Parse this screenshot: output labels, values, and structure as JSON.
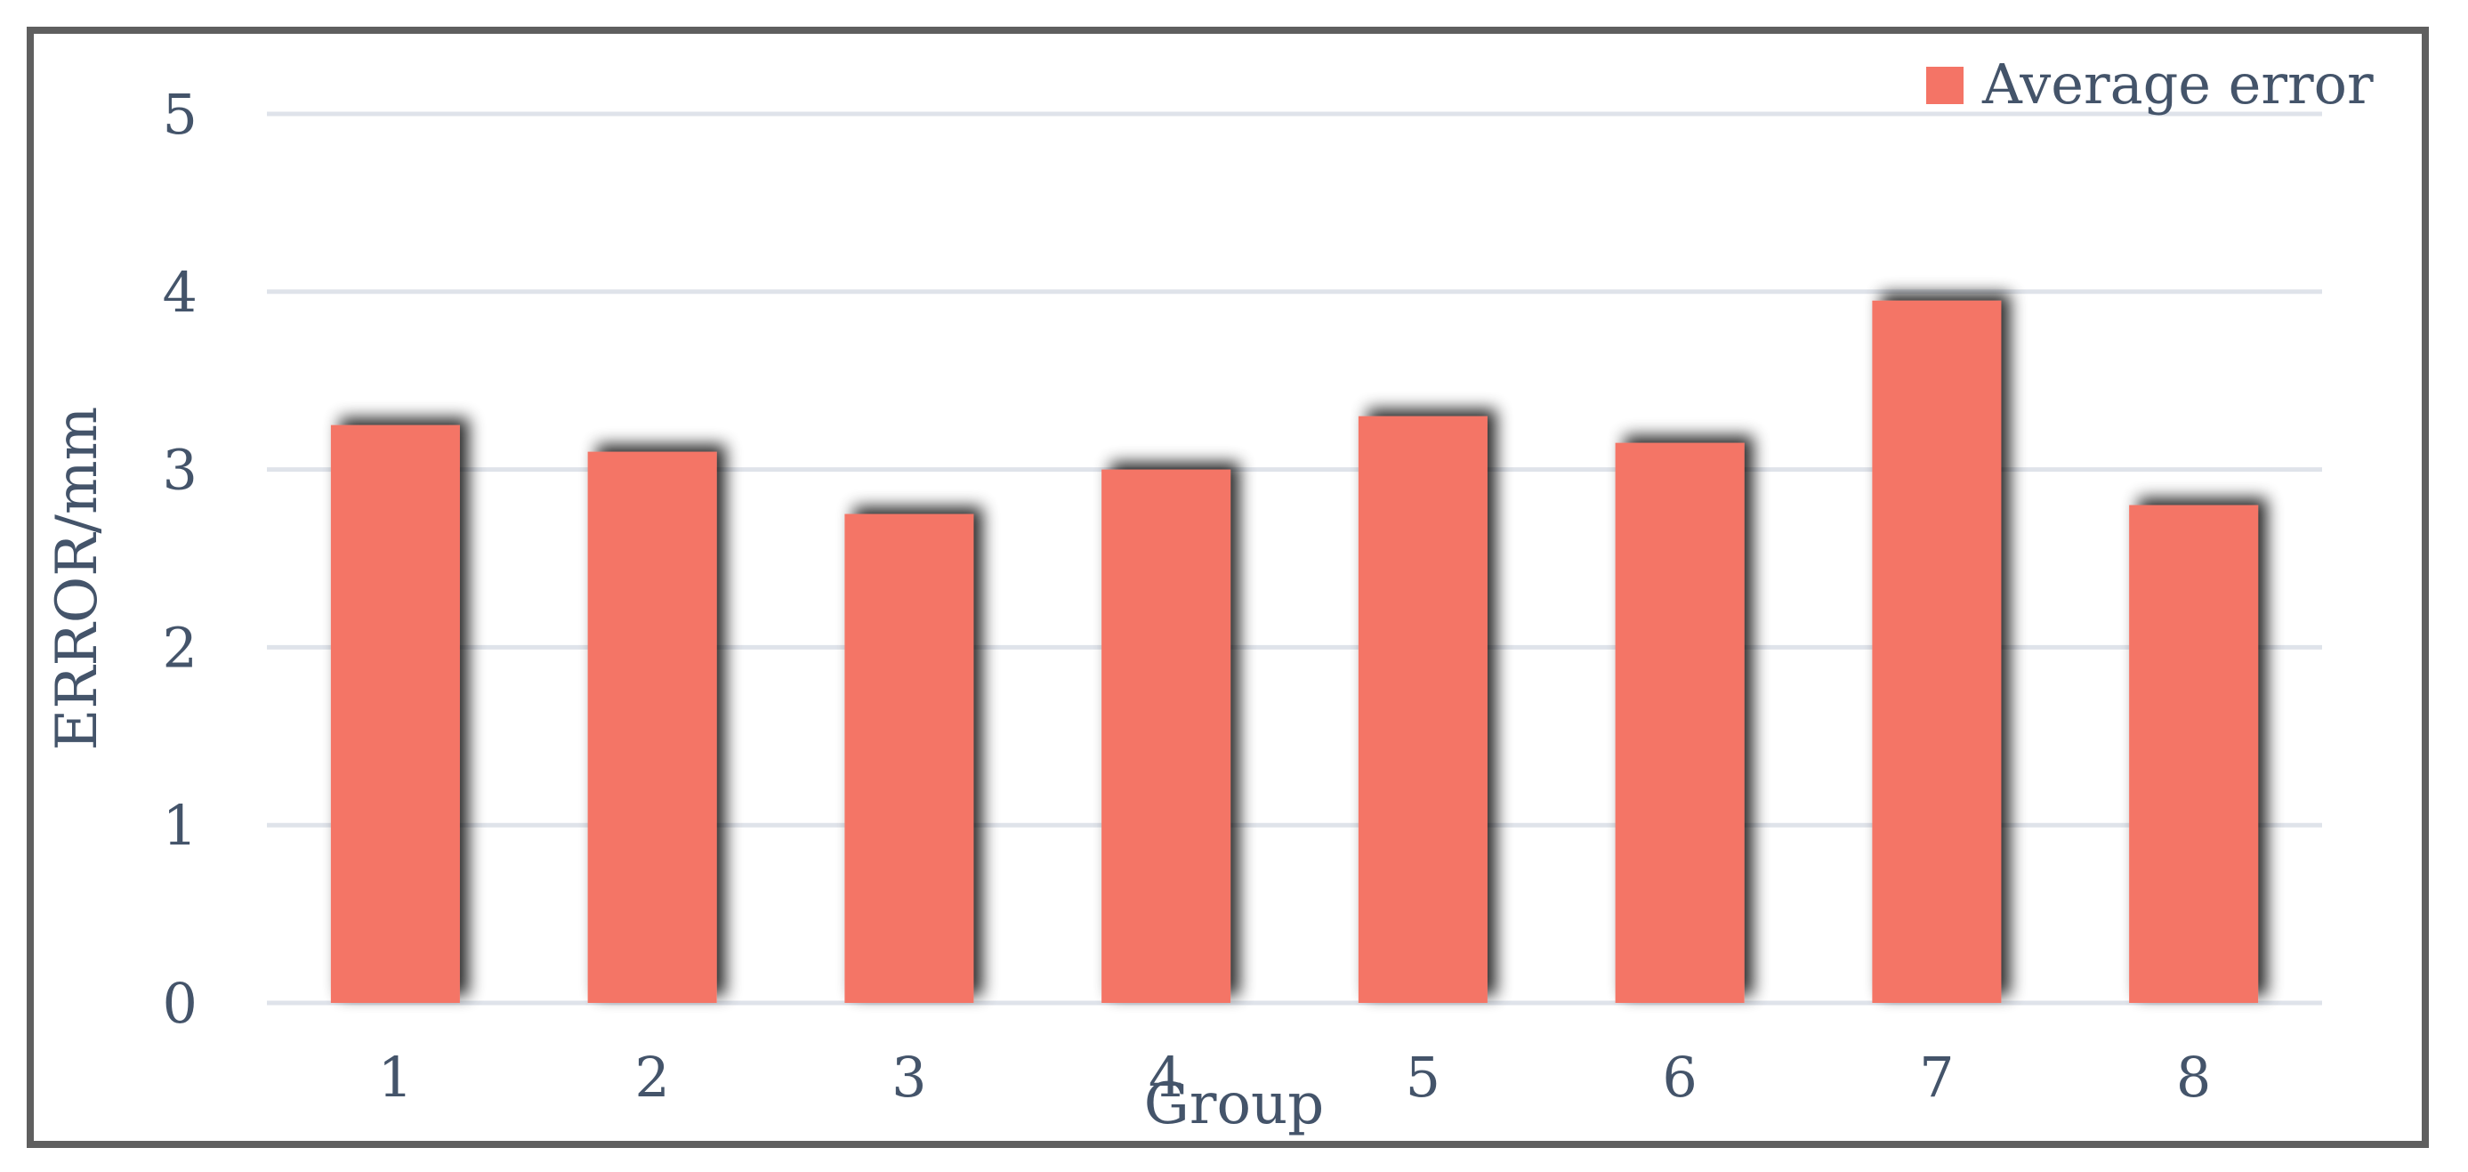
{
  "chart_data": {
    "type": "bar",
    "categories": [
      "1",
      "2",
      "3",
      "4",
      "5",
      "6",
      "7",
      "8"
    ],
    "series": [
      {
        "name": "Average error",
        "values": [
          3.25,
          3.1,
          2.75,
          3.0,
          3.3,
          3.15,
          3.95,
          2.8
        ]
      }
    ],
    "xlabel": "Group",
    "ylabel": "ERROR/mm",
    "ylim": [
      0,
      5
    ],
    "yticks": [
      "0",
      "1",
      "2",
      "3",
      "4",
      "5"
    ],
    "grid": "horizontal",
    "legend": "top-right"
  },
  "colors": {
    "bar": "#f47466",
    "text": "#44546a",
    "grid": "#dfe3ea",
    "frame": "#5f5f5f"
  }
}
